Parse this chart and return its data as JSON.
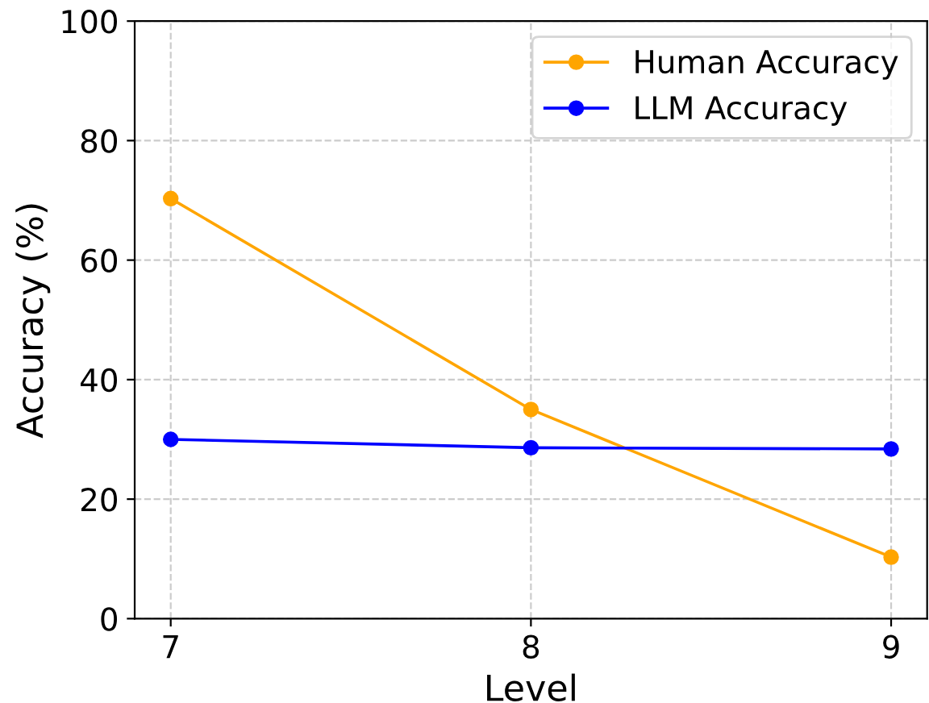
{
  "chart_data": {
    "type": "line",
    "xlabel": "Level",
    "ylabel": "Accuracy (%)",
    "x": [
      7,
      8,
      9
    ],
    "series": [
      {
        "name": "Human Accuracy",
        "color": "#ffa500",
        "values": [
          70.3,
          35.0,
          10.3
        ]
      },
      {
        "name": "LLM Accuracy",
        "color": "#0000ff",
        "values": [
          30.0,
          28.6,
          28.4
        ]
      }
    ],
    "xlim": [
      6.9,
      9.1
    ],
    "xticks": [
      7,
      8,
      9
    ],
    "ylim": [
      0,
      100
    ],
    "yticks": [
      0,
      20,
      40,
      60,
      80,
      100
    ],
    "grid": true,
    "legend": "top right",
    "marker": "circle",
    "line_style": "solid"
  }
}
